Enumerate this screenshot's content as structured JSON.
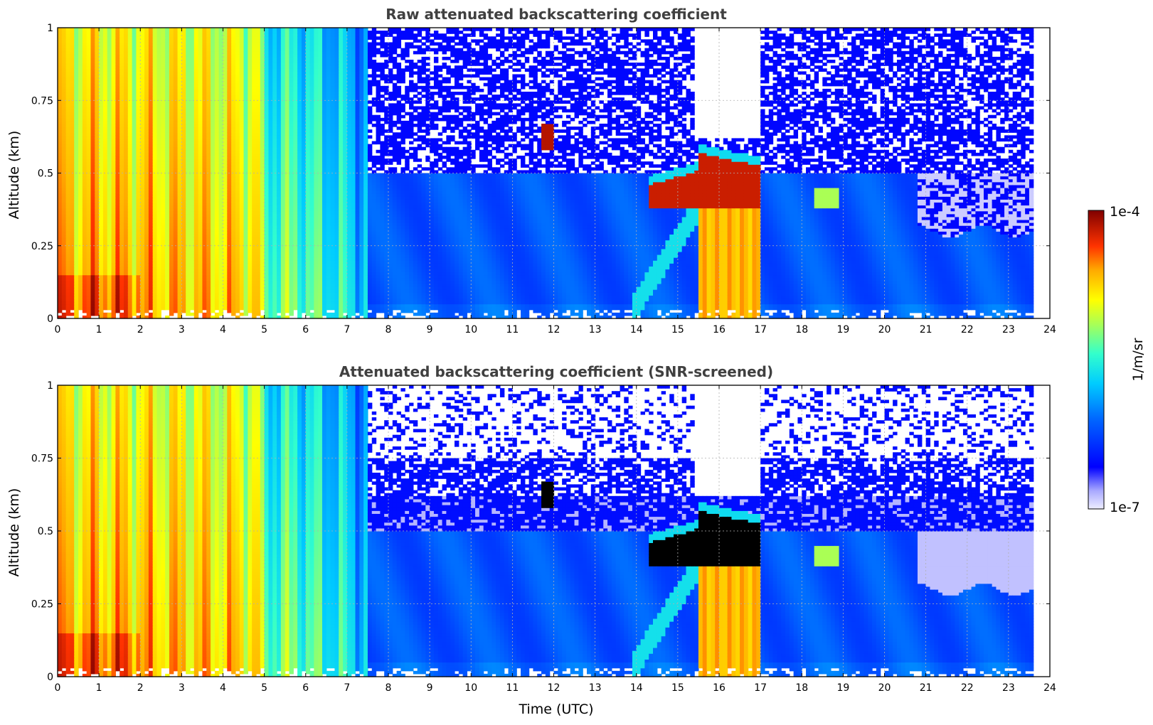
{
  "chart_data": [
    {
      "type": "heatmap",
      "title": "Raw attenuated backscattering coefficient",
      "xlabel": "",
      "ylabel": "Altitude (km)",
      "xlim": [
        0,
        24
      ],
      "ylim": [
        0,
        1
      ],
      "x_ticks": [
        "0",
        "1",
        "2",
        "3",
        "4",
        "5",
        "6",
        "7",
        "8",
        "9",
        "10",
        "11",
        "12",
        "13",
        "14",
        "15",
        "16",
        "17",
        "18",
        "19",
        "20",
        "21",
        "22",
        "23",
        "24"
      ],
      "y_ticks": [
        "0",
        "0.25",
        "0.5",
        "0.75",
        "1"
      ],
      "grid": true,
      "data_end_time": 23.55,
      "features": [
        {
          "desc": "near-surface fog layer",
          "time": [
            0,
            7.5
          ],
          "altitude": [
            0,
            1
          ],
          "level": "high (1e-5 to 1e-4)"
        },
        {
          "desc": "boundary layer aerosol",
          "time": [
            7.5,
            23.55
          ],
          "altitude": [
            0,
            0.5
          ],
          "level": "low (1e-6)"
        },
        {
          "desc": "small cloud",
          "time": [
            11.7,
            12.0
          ],
          "altitude": [
            0.6,
            0.67
          ],
          "level": "very high"
        },
        {
          "desc": "low cloud layer",
          "time": [
            14.3,
            17.0
          ],
          "altitude": [
            0.38,
            0.58
          ],
          "level": "very high"
        },
        {
          "desc": "rain/fog below cloud",
          "time": [
            15.5,
            17.0
          ],
          "altitude": [
            0,
            0.4
          ],
          "level": "high"
        },
        {
          "desc": "clear-sky no signal gap",
          "time": [
            15.5,
            17.0
          ],
          "altitude": [
            0.62,
            1
          ],
          "level": "none"
        }
      ]
    },
    {
      "type": "heatmap",
      "title": "Attenuated backscattering coefficient (SNR-screened)",
      "xlabel": "Time (UTC)",
      "ylabel": "Altitude (km)",
      "xlim": [
        0,
        24
      ],
      "ylim": [
        0,
        1
      ],
      "x_ticks": [
        "0",
        "1",
        "2",
        "3",
        "4",
        "5",
        "6",
        "7",
        "8",
        "9",
        "10",
        "11",
        "12",
        "13",
        "14",
        "15",
        "16",
        "17",
        "18",
        "19",
        "20",
        "21",
        "22",
        "23",
        "24"
      ],
      "y_ticks": [
        "0",
        "0.25",
        "0.5",
        "0.75",
        "1"
      ],
      "grid": true,
      "data_end_time": 23.55,
      "features": [
        {
          "desc": "near-surface fog layer",
          "time": [
            0,
            7.5
          ],
          "altitude": [
            0,
            1
          ],
          "level": "high"
        },
        {
          "desc": "boundary layer aerosol",
          "time": [
            7.5,
            23.55
          ],
          "altitude": [
            0,
            0.5
          ],
          "level": "low"
        },
        {
          "desc": "saturated cloud",
          "time": [
            14.3,
            17.0
          ],
          "altitude": [
            0.38,
            0.55
          ],
          "level": "saturated (black)"
        },
        {
          "desc": "small saturated cloud",
          "time": [
            11.7,
            12.0
          ],
          "altitude": [
            0.58,
            0.67
          ],
          "level": "saturated (black)"
        }
      ]
    }
  ],
  "colorbar": {
    "label": "1/m/sr",
    "min_label": "1e-7",
    "max_label": "1e-4",
    "scale": "log",
    "colormap": "jet"
  }
}
